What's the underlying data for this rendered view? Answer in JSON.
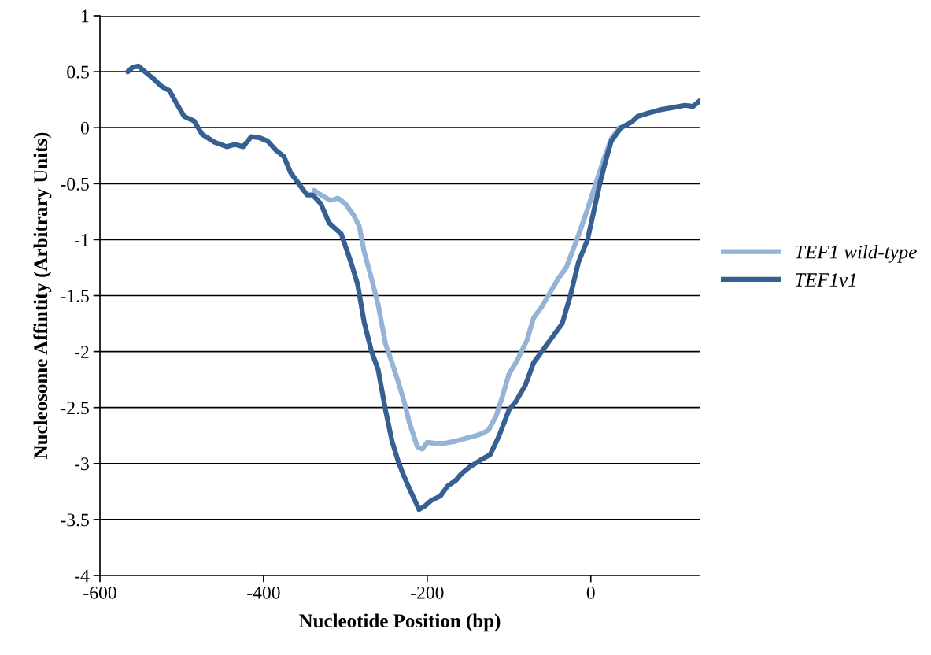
{
  "chart_data": {
    "type": "line",
    "xlabel": "Nucleotide Position (bp)",
    "ylabel": "Nucleosome Affintity (Arbitrary Units)",
    "xlim": [
      -600,
      133
    ],
    "xticks": [
      -600,
      -400,
      -200,
      0
    ],
    "ylim": [
      -4,
      1
    ],
    "yticks": [
      -4,
      -3.5,
      -3,
      -2.5,
      -2,
      -1.5,
      -1,
      -0.5,
      0,
      0.5,
      1
    ],
    "grid": "y",
    "legend": "right",
    "marker": "none",
    "line_style": "solid",
    "series": [
      {
        "name": "TEF1 wild-type",
        "color": "#95b3d7",
        "x": [
          -338,
          -330,
          -318,
          -309,
          -300,
          -290,
          -283,
          -277,
          -268,
          -260,
          -251,
          -243,
          -235,
          -228,
          -222,
          -212,
          -206,
          -200,
          -190,
          -180,
          -165,
          -150,
          -140,
          -132,
          -125,
          -116,
          -108,
          -100,
          -90,
          -85,
          -78,
          -70,
          -60,
          -52,
          -40,
          -30,
          -17,
          -5,
          6,
          15,
          25,
          35
        ],
        "values": [
          -0.56,
          -0.6,
          -0.65,
          -0.63,
          -0.68,
          -0.78,
          -0.88,
          -1.11,
          -1.35,
          -1.58,
          -1.93,
          -2.1,
          -2.28,
          -2.45,
          -2.63,
          -2.85,
          -2.87,
          -2.81,
          -2.82,
          -2.82,
          -2.8,
          -2.77,
          -2.75,
          -2.73,
          -2.7,
          -2.58,
          -2.4,
          -2.2,
          -2.08,
          -2.0,
          -1.9,
          -1.7,
          -1.6,
          -1.5,
          -1.35,
          -1.25,
          -1.0,
          -0.75,
          -0.5,
          -0.3,
          -0.1,
          0
        ]
      },
      {
        "name": "TEF1v1",
        "color": "#376092",
        "x": [
          -566,
          -560,
          -553,
          -545,
          -535,
          -525,
          -515,
          -505,
          -497,
          -485,
          -475,
          -460,
          -445,
          -435,
          -425,
          -415,
          -405,
          -395,
          -385,
          -375,
          -367,
          -357,
          -347,
          -340,
          -330,
          -320,
          -305,
          -292,
          -285,
          -277,
          -268,
          -260,
          -251,
          -243,
          -235,
          -228,
          -222,
          -215,
          -210,
          -203,
          -195,
          -184,
          -175,
          -165,
          -158,
          -148,
          -135,
          -123,
          -112,
          -100,
          -92,
          -80,
          -70,
          -60,
          -45,
          -35,
          -25,
          -15,
          -4,
          5,
          11,
          18,
          25,
          37,
          50,
          57,
          70,
          85,
          100,
          115,
          125,
          133
        ],
        "values": [
          0.5,
          0.54,
          0.55,
          0.5,
          0.44,
          0.37,
          0.33,
          0.2,
          0.1,
          0.06,
          -0.06,
          -0.13,
          -0.17,
          -0.15,
          -0.17,
          -0.08,
          -0.09,
          -0.12,
          -0.2,
          -0.26,
          -0.4,
          -0.5,
          -0.6,
          -0.6,
          -0.68,
          -0.85,
          -0.95,
          -1.23,
          -1.4,
          -1.74,
          -2.0,
          -2.16,
          -2.52,
          -2.8,
          -2.99,
          -3.12,
          -3.22,
          -3.33,
          -3.41,
          -3.38,
          -3.33,
          -3.29,
          -3.2,
          -3.15,
          -3.09,
          -3.03,
          -2.97,
          -2.92,
          -2.75,
          -2.52,
          -2.45,
          -2.3,
          -2.1,
          -2.0,
          -1.85,
          -1.75,
          -1.5,
          -1.2,
          -1.0,
          -0.7,
          -0.5,
          -0.3,
          -0.12,
          0,
          0.05,
          0.1,
          0.13,
          0.16,
          0.18,
          0.2,
          0.19,
          0.24
        ]
      }
    ]
  }
}
